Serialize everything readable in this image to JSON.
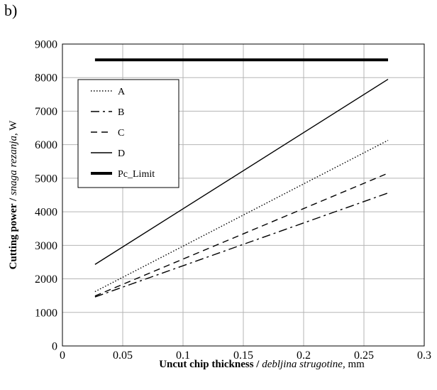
{
  "panel_label": "b)",
  "chart_data": {
    "type": "line",
    "xlabel": {
      "bold": "Uncut chip thickness",
      "sep": " / ",
      "italic": "debljina strugotine",
      "unit": ", mm"
    },
    "ylabel": {
      "bold": "Cutting power",
      "sep": " / ",
      "italic": "snaga rezanja",
      "unit": ", W"
    },
    "xlim": [
      0,
      0.3
    ],
    "ylim": [
      0,
      9000
    ],
    "x_ticks": [
      "0",
      "0.05",
      "0.1",
      "0.15",
      "0.2",
      "0.25",
      "0.3"
    ],
    "y_ticks": [
      "0",
      "1000",
      "2000",
      "3000",
      "4000",
      "5000",
      "6000",
      "7000",
      "8000",
      "9000"
    ],
    "grid": true,
    "legend_position": "upper-left",
    "series": [
      {
        "name": "A",
        "style": "dotted",
        "x": [
          0.027,
          0.27
        ],
        "y": [
          1620,
          6130
        ]
      },
      {
        "name": "B",
        "style": "dashdot",
        "x": [
          0.027,
          0.27
        ],
        "y": [
          1460,
          4560
        ]
      },
      {
        "name": "C",
        "style": "dashed",
        "x": [
          0.027,
          0.27
        ],
        "y": [
          1490,
          5150
        ]
      },
      {
        "name": "D",
        "style": "solid",
        "x": [
          0.027,
          0.27
        ],
        "y": [
          2430,
          7950
        ]
      },
      {
        "name": "Pc_Limit",
        "style": "thick",
        "x": [
          0.027,
          0.27
        ],
        "y": [
          8530,
          8530
        ]
      }
    ]
  }
}
